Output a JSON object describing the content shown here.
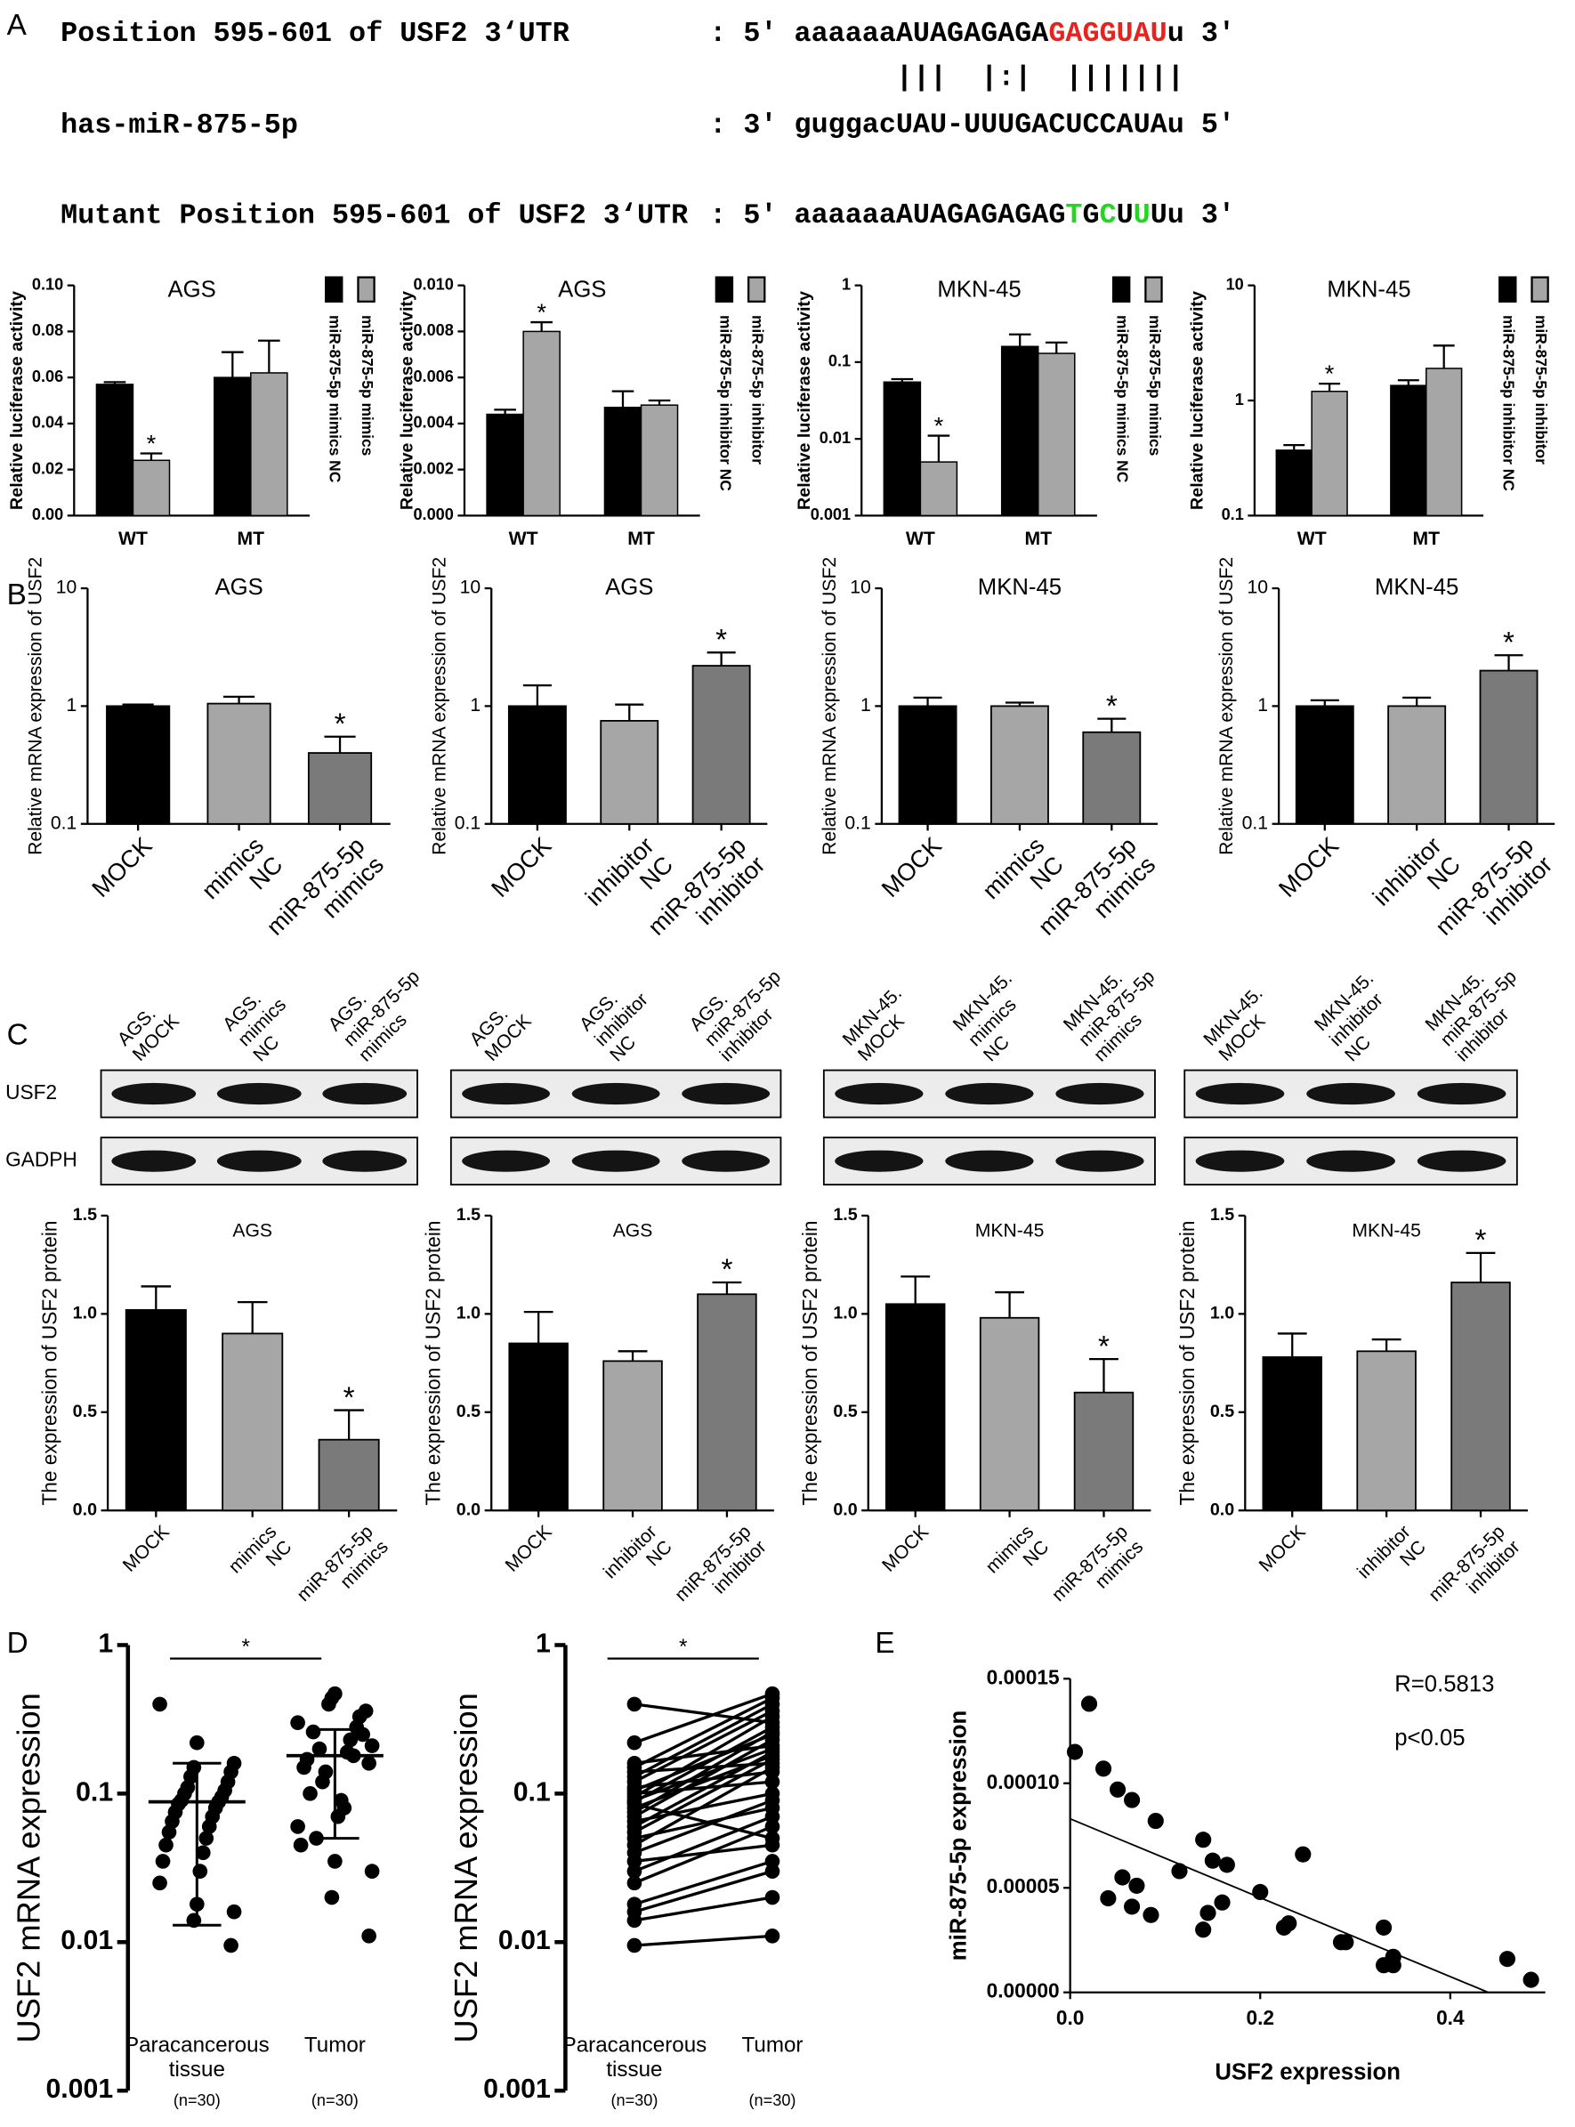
{
  "panel_labels": [
    "A",
    "B",
    "C",
    "D",
    "E"
  ],
  "alignment": {
    "rows": [
      {
        "name": "Position 595-601 of USF2 3‘UTR",
        "strand": ": 5'",
        "sequence": [
          {
            "text": "aaaaaaAUAGAGAGA",
            "color": "#000000"
          },
          {
            "text": "GAGGUAU",
            "color": "#e8231f"
          },
          {
            "text": "u 3'",
            "color": "#000000"
          }
        ]
      },
      {
        "sequence": [
          {
            "text": "|||  |:|  |||||||",
            "color": "#000000"
          }
        ]
      },
      {
        "name": "has-miR-875-5p",
        "strand": ": 3'",
        "sequence": [
          {
            "text": "guggacUAU-UUUGACUCCAUAu 5'",
            "color": "#000000"
          }
        ]
      },
      {
        "name": "Mutant Position 595-601 of USF2 3‘UTR",
        "strand": ": 5'",
        "sequence": [
          {
            "text": "aaaaaaAUAGAGAGAG",
            "color": "#000000"
          },
          {
            "text": "T",
            "color": "#22d622"
          },
          {
            "text": "G",
            "color": "#000000"
          },
          {
            "text": "C",
            "color": "#22d622"
          },
          {
            "text": "U",
            "color": "#000000"
          },
          {
            "text": "U",
            "color": "#22d622"
          },
          {
            "text": "Uu 3'",
            "color": "#000000"
          }
        ]
      }
    ]
  },
  "blots": {
    "row_labels": [
      "USF2",
      "GADPH"
    ],
    "panels": [
      {
        "lanes": [
          [
            "AGS.",
            "MOCK"
          ],
          [
            "AGS.",
            "mimics",
            "NC"
          ],
          [
            "AGS.",
            "miR-875-5p",
            "mimics"
          ]
        ]
      },
      {
        "lanes": [
          [
            "AGS.",
            "MOCK"
          ],
          [
            "AGS.",
            "inhibitor",
            "NC"
          ],
          [
            "AGS.",
            "miR-875-5p",
            "inhibitor"
          ]
        ]
      },
      {
        "lanes": [
          [
            "MKN-45.",
            "MOCK"
          ],
          [
            "MKN-45.",
            "mimics",
            "NC"
          ],
          [
            "MKN-45.",
            "miR-875-5p",
            "mimics"
          ]
        ]
      },
      {
        "lanes": [
          [
            "MKN-45.",
            "MOCK"
          ],
          [
            "MKN-45.",
            "inhibitor",
            "NC"
          ],
          [
            "MKN-45.",
            "miR-875-5p",
            "inhibitor"
          ]
        ]
      }
    ]
  },
  "chart_data": [
    {
      "type": "grouped_bar",
      "title": "AGS",
      "ylabel": "Relative luciferase activity",
      "categories": [
        "WT",
        "MT"
      ],
      "series": [
        {
          "name": "miR-875-5p mimics NC",
          "color": "#000000",
          "values": [
            0.057,
            0.06
          ],
          "errors": [
            0.001,
            0.011
          ]
        },
        {
          "name": "miR-875-5p mimics",
          "color": "#a6a6a6",
          "values": [
            0.024,
            0.062
          ],
          "errors": [
            0.003,
            0.014
          ]
        }
      ],
      "log": false,
      "ylim": [
        0,
        0.1
      ],
      "yticks": [
        {
          "value": 0,
          "label": "0.00"
        },
        0.02,
        0.04,
        0.06,
        0.08,
        {
          "value": 0.1,
          "label": "0.10"
        }
      ],
      "annotations": [
        {
          "text": "*",
          "series": 1,
          "category": 0
        }
      ]
    },
    {
      "type": "grouped_bar",
      "title": "AGS",
      "ylabel": "Relative luciferase activity",
      "categories": [
        "WT",
        "MT"
      ],
      "series": [
        {
          "name": "miR-875-5p inhibitor NC",
          "color": "#000000",
          "values": [
            0.0044,
            0.0047
          ],
          "errors": [
            0.0002,
            0.0007
          ]
        },
        {
          "name": "miR-875-5p inhibitor",
          "color": "#a6a6a6",
          "values": [
            0.008,
            0.0048
          ],
          "errors": [
            0.0004,
            0.0002
          ]
        }
      ],
      "log": false,
      "ylim": [
        0,
        0.01
      ],
      "yticks": [
        {
          "value": 0,
          "label": "0.000"
        },
        0.002,
        0.004,
        0.006,
        0.008,
        {
          "value": 0.01,
          "label": "0.010"
        }
      ],
      "annotations": [
        {
          "text": "*",
          "series": 1,
          "category": 0
        }
      ]
    },
    {
      "type": "grouped_bar",
      "title": "MKN-45",
      "ylabel": "Relative luciferase activity",
      "categories": [
        "WT",
        "MT"
      ],
      "series": [
        {
          "name": "miR-875-5p mimics NC",
          "color": "#000000",
          "values": [
            0.055,
            0.16
          ],
          "errors": [
            0.005,
            0.07
          ]
        },
        {
          "name": "miR-875-5p mimics",
          "color": "#a6a6a6",
          "values": [
            0.005,
            0.13
          ],
          "errors": [
            0.006,
            0.05
          ]
        }
      ],
      "log": true,
      "ylim": [
        0.001,
        1
      ],
      "yticks": [
        0.001,
        0.01,
        0.1,
        1
      ],
      "annotations": [
        {
          "text": "*",
          "series": 1,
          "category": 0
        }
      ]
    },
    {
      "type": "grouped_bar",
      "title": "MKN-45",
      "ylabel": "Relative luciferase activity",
      "categories": [
        "WT",
        "MT"
      ],
      "series": [
        {
          "name": "miR-875-5p inhibitor NC",
          "color": "#000000",
          "values": [
            0.37,
            1.35
          ],
          "errors": [
            0.04,
            0.15
          ]
        },
        {
          "name": "miR-875-5p inhibitor",
          "color": "#a6a6a6",
          "values": [
            1.2,
            1.9
          ],
          "errors": [
            0.2,
            1.1
          ]
        }
      ],
      "log": true,
      "ylim": [
        0.1,
        10
      ],
      "yticks": [
        0.1,
        1,
        10
      ],
      "annotations": [
        {
          "text": "*",
          "series": 1,
          "category": 0
        }
      ]
    },
    {
      "type": "bar",
      "title": "AGS",
      "ylabel": "Relative mRNA expression of USF2",
      "categories": [
        [
          "MOCK"
        ],
        [
          "mimics",
          "NC"
        ],
        [
          "miR-875-5p",
          "mimics"
        ]
      ],
      "colors": [
        "#000000",
        "#a6a6a6",
        "#7a7a7a"
      ],
      "values": [
        1.0,
        1.05,
        0.4
      ],
      "errors": [
        0.03,
        0.15,
        0.15
      ],
      "log": true,
      "ylim": [
        0.1,
        10
      ],
      "yticks": [
        0.1,
        1,
        10
      ],
      "annotations": [
        {
          "text": "*",
          "category": 2
        }
      ]
    },
    {
      "type": "bar",
      "title": "AGS",
      "ylabel": "Relative mRNA expression of USF2",
      "categories": [
        [
          "MOCK"
        ],
        [
          "inhibitor",
          "NC"
        ],
        [
          "miR-875-5p",
          "inhibitor"
        ]
      ],
      "colors": [
        "#000000",
        "#a6a6a6",
        "#7a7a7a"
      ],
      "values": [
        1.0,
        0.75,
        2.2
      ],
      "errors": [
        0.5,
        0.28,
        0.65
      ],
      "log": true,
      "ylim": [
        0.1,
        10
      ],
      "yticks": [
        0.1,
        1,
        10
      ],
      "annotations": [
        {
          "text": "*",
          "category": 2
        }
      ]
    },
    {
      "type": "bar",
      "title": "MKN-45",
      "ylabel": "Relative mRNA expression of USF2",
      "categories": [
        [
          "MOCK"
        ],
        [
          "mimics",
          "NC"
        ],
        [
          "miR-875-5p",
          "mimics"
        ]
      ],
      "colors": [
        "#000000",
        "#a6a6a6",
        "#7a7a7a"
      ],
      "values": [
        1.0,
        1.0,
        0.6
      ],
      "errors": [
        0.18,
        0.07,
        0.18
      ],
      "log": true,
      "ylim": [
        0.1,
        10
      ],
      "yticks": [
        0.1,
        1,
        10
      ],
      "annotations": [
        {
          "text": "*",
          "category": 2
        }
      ]
    },
    {
      "type": "bar",
      "title": "MKN-45",
      "ylabel": "Relative mRNA expression of USF2",
      "categories": [
        [
          "MOCK"
        ],
        [
          "inhibitor",
          "NC"
        ],
        [
          "miR-875-5p",
          "inhibitor"
        ]
      ],
      "colors": [
        "#000000",
        "#a6a6a6",
        "#7a7a7a"
      ],
      "values": [
        1.0,
        1.0,
        2.0
      ],
      "errors": [
        0.12,
        0.18,
        0.7
      ],
      "log": true,
      "ylim": [
        0.1,
        10
      ],
      "yticks": [
        0.1,
        1,
        10
      ],
      "annotations": [
        {
          "text": "*",
          "category": 2
        }
      ]
    },
    {
      "type": "bar",
      "title": "AGS",
      "ylabel": "The expression of USF2 protein",
      "categories": [
        [
          "MOCK"
        ],
        [
          "mimics",
          "NC"
        ],
        [
          "miR-875-5p",
          "mimics"
        ]
      ],
      "colors": [
        "#000000",
        "#a6a6a6",
        "#7a7a7a"
      ],
      "values": [
        1.02,
        0.9,
        0.36
      ],
      "errors": [
        0.12,
        0.16,
        0.15
      ],
      "log": false,
      "ylim": [
        0,
        1.5
      ],
      "yticks": [
        {
          "value": 0,
          "label": "0.0"
        },
        0.5,
        {
          "value": 1,
          "label": "1.0"
        },
        1.5
      ],
      "annotations": [
        {
          "text": "*",
          "category": 2
        }
      ]
    },
    {
      "type": "bar",
      "title": "AGS",
      "ylabel": "The expression of USF2 protein",
      "categories": [
        [
          "MOCK"
        ],
        [
          "inhibitor",
          "NC"
        ],
        [
          "miR-875-5p",
          "inhibitor"
        ]
      ],
      "colors": [
        "#000000",
        "#a6a6a6",
        "#7a7a7a"
      ],
      "values": [
        0.85,
        0.76,
        1.1
      ],
      "errors": [
        0.16,
        0.05,
        0.06
      ],
      "log": false,
      "ylim": [
        0,
        1.5
      ],
      "yticks": [
        {
          "value": 0,
          "label": "0.0"
        },
        0.5,
        {
          "value": 1,
          "label": "1.0"
        },
        1.5
      ],
      "annotations": [
        {
          "text": "*",
          "category": 2
        }
      ]
    },
    {
      "type": "bar",
      "title": "MKN-45",
      "ylabel": "The expression of USF2 protein",
      "categories": [
        [
          "MOCK"
        ],
        [
          "mimics",
          "NC"
        ],
        [
          "miR-875-5p",
          "mimics"
        ]
      ],
      "colors": [
        "#000000",
        "#a6a6a6",
        "#7a7a7a"
      ],
      "values": [
        1.05,
        0.98,
        0.6
      ],
      "errors": [
        0.14,
        0.13,
        0.17
      ],
      "log": false,
      "ylim": [
        0,
        1.5
      ],
      "yticks": [
        {
          "value": 0,
          "label": "0.0"
        },
        0.5,
        {
          "value": 1,
          "label": "1.0"
        },
        1.5
      ],
      "annotations": [
        {
          "text": "*",
          "category": 2
        }
      ]
    },
    {
      "type": "bar",
      "title": "MKN-45",
      "ylabel": "The expression of USF2 protein",
      "categories": [
        [
          "MOCK"
        ],
        [
          "inhibitor",
          "NC"
        ],
        [
          "miR-875-5p",
          "inhibitor"
        ]
      ],
      "colors": [
        "#000000",
        "#a6a6a6",
        "#7a7a7a"
      ],
      "values": [
        0.78,
        0.81,
        1.16
      ],
      "errors": [
        0.12,
        0.06,
        0.15
      ],
      "log": false,
      "ylim": [
        0,
        1.5
      ],
      "yticks": [
        {
          "value": 0,
          "label": "0.0"
        },
        0.5,
        {
          "value": 1,
          "label": "1.0"
        },
        1.5
      ],
      "annotations": [
        {
          "text": "*",
          "category": 2
        }
      ]
    },
    {
      "type": "dot_plot",
      "ylabel": "USF2 mRNA expression",
      "log": true,
      "ylim": [
        0.001,
        1
      ],
      "yticks": [
        0.001,
        0.01,
        0.1,
        1
      ],
      "significance": "*",
      "groups": [
        {
          "label": [
            "Paracancerous",
            "tissue"
          ],
          "n": "(n=30)",
          "mean": 0.088,
          "error_range": [
            0.013,
            0.16
          ],
          "values": [
            0.4,
            0.22,
            0.16,
            0.15,
            0.14,
            0.13,
            0.12,
            0.11,
            0.105,
            0.1,
            0.095,
            0.09,
            0.088,
            0.085,
            0.08,
            0.075,
            0.07,
            0.065,
            0.06,
            0.055,
            0.05,
            0.045,
            0.04,
            0.035,
            0.03,
            0.025,
            0.018,
            0.016,
            0.014,
            0.0095
          ]
        },
        {
          "label": [
            "Tumor"
          ],
          "n": "(n=30)",
          "mean": 0.18,
          "error_range": [
            0.05,
            0.27
          ],
          "values": [
            0.3,
            0.47,
            0.21,
            0.44,
            0.16,
            0.4,
            0.36,
            0.14,
            0.25,
            0.12,
            0.33,
            0.2,
            0.28,
            0.05,
            0.18,
            0.26,
            0.23,
            0.1,
            0.19,
            0.17,
            0.08,
            0.15,
            0.09,
            0.045,
            0.07,
            0.06,
            0.035,
            0.03,
            0.02,
            0.011
          ]
        }
      ]
    },
    {
      "type": "paired",
      "ylabel": "USF2 mRNA expression",
      "log": true,
      "ylim": [
        0.001,
        1
      ],
      "yticks": [
        0.001,
        0.01,
        0.1,
        1
      ],
      "significance": "*",
      "groups": [
        {
          "label": [
            "Paracancerous",
            "tissue"
          ],
          "n": "(n=30)",
          "values": [
            0.4,
            0.22,
            0.16,
            0.15,
            0.14,
            0.13,
            0.12,
            0.11,
            0.105,
            0.1,
            0.095,
            0.09,
            0.088,
            0.085,
            0.08,
            0.075,
            0.07,
            0.065,
            0.06,
            0.055,
            0.05,
            0.045,
            0.04,
            0.035,
            0.03,
            0.025,
            0.018,
            0.016,
            0.014,
            0.0095
          ]
        },
        {
          "label": [
            "Tumor"
          ],
          "n": "(n=30)",
          "values": [
            0.3,
            0.47,
            0.21,
            0.44,
            0.16,
            0.4,
            0.36,
            0.14,
            0.25,
            0.12,
            0.33,
            0.2,
            0.28,
            0.05,
            0.18,
            0.26,
            0.23,
            0.1,
            0.19,
            0.17,
            0.08,
            0.15,
            0.09,
            0.045,
            0.07,
            0.06,
            0.035,
            0.03,
            0.02,
            0.011
          ]
        }
      ]
    },
    {
      "type": "scatter",
      "xlabel": "USF2 expression",
      "ylabel": "miR-875-5p expression",
      "annotations": [
        "R=0.5813",
        "p<0.05"
      ],
      "log": false,
      "xlim": [
        0,
        0.5
      ],
      "xticks": [
        {
          "value": 0,
          "label": "0.0"
        },
        0.2,
        0.4
      ],
      "ylim": [
        0,
        0.00015
      ],
      "yticks": [
        {
          "value": 0,
          "label": "0.00000"
        },
        5e-05,
        {
          "value": 0.0001,
          "label": "0.00010"
        },
        0.00015
      ],
      "x": [
        0.005,
        0.02,
        0.035,
        0.05,
        0.065,
        0.09,
        0.055,
        0.07,
        0.04,
        0.065,
        0.085,
        0.115,
        0.14,
        0.15,
        0.165,
        0.14,
        0.145,
        0.16,
        0.2,
        0.225,
        0.23,
        0.245,
        0.285,
        0.29,
        0.33,
        0.33,
        0.34,
        0.34,
        0.46,
        0.485
      ],
      "y": [
        0.000115,
        0.000138,
        0.000107,
        9.7e-05,
        9.2e-05,
        8.2e-05,
        5.5e-05,
        5.1e-05,
        4.5e-05,
        4.1e-05,
        3.7e-05,
        5.8e-05,
        7.3e-05,
        6.3e-05,
        6.1e-05,
        3e-05,
        3.8e-05,
        4.3e-05,
        4.8e-05,
        3.1e-05,
        3.3e-05,
        6.6e-05,
        2.4e-05,
        2.4e-05,
        3.1e-05,
        1.3e-05,
        1.3e-05,
        1.7e-05,
        1.6e-05,
        6e-06
      ],
      "fit": {
        "x": [
          0,
          0.44
        ],
        "y": [
          8.3e-05,
          0
        ]
      },
      "color": "#000000"
    }
  ]
}
